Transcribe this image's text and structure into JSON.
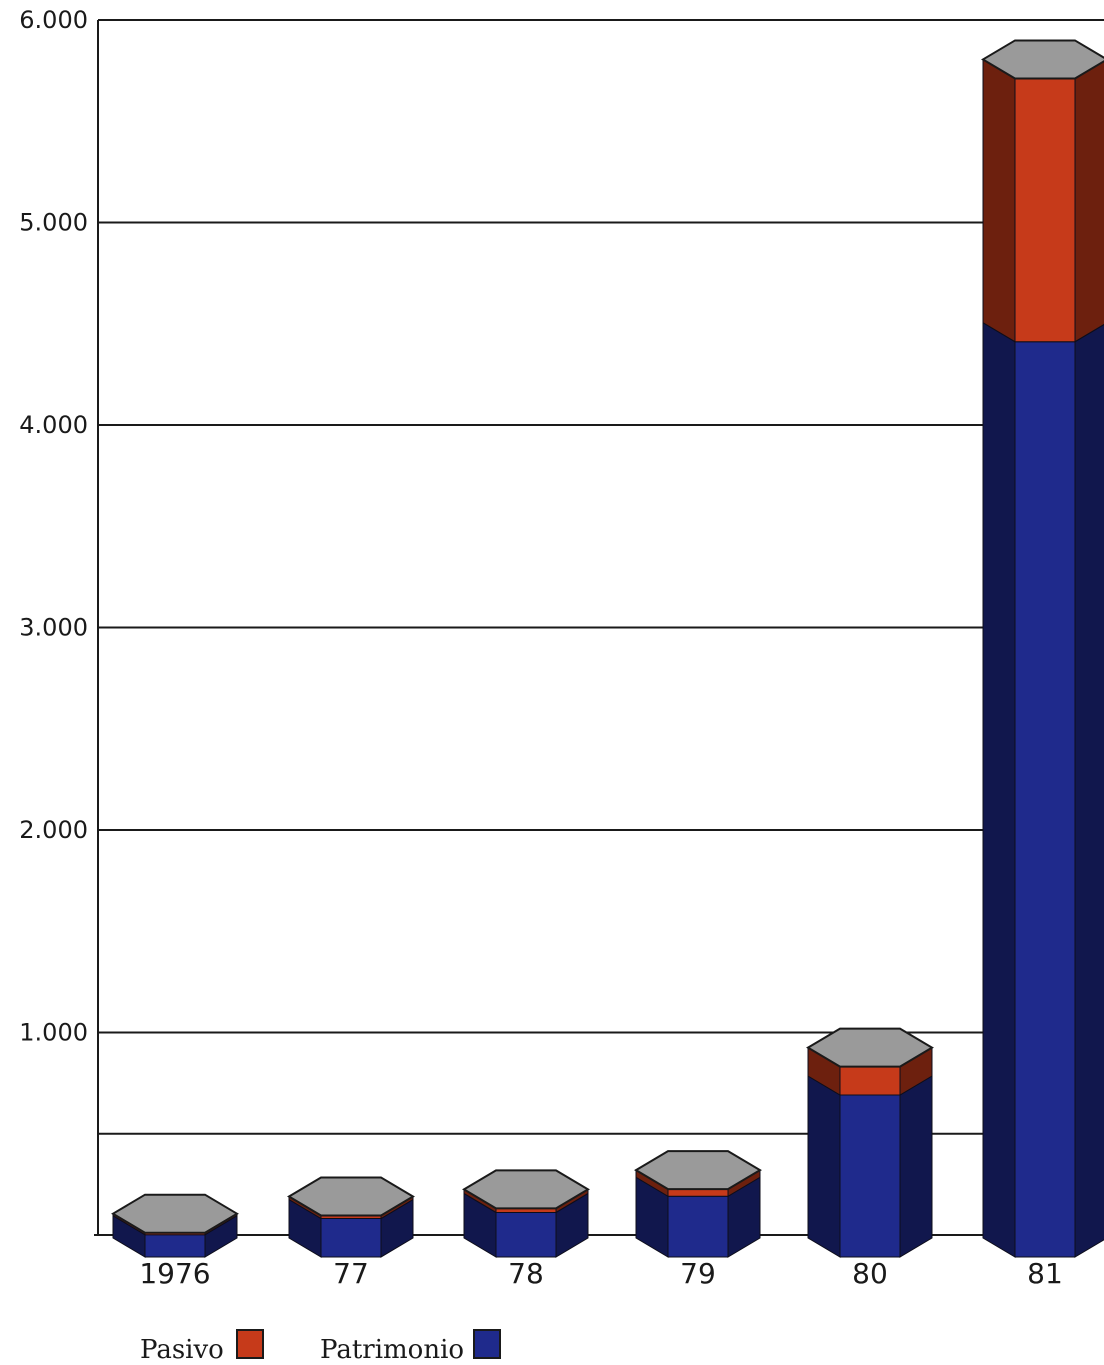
{
  "chart_data": {
    "type": "bar",
    "stacked": true,
    "style": "3d-hexagonal-prism",
    "categories": [
      "1976",
      "77",
      "78",
      "79",
      "80",
      "81"
    ],
    "series": [
      {
        "name": "Patrimonio",
        "color": "#1f2a8c",
        "values": [
          110,
          190,
          220,
          300,
          800,
          4520
        ]
      },
      {
        "name": "Pasivo",
        "color": "#c63a1a",
        "values": [
          10,
          15,
          20,
          35,
          140,
          1300
        ]
      }
    ],
    "y_ticks": [
      "1.000",
      "2.000",
      "3.000",
      "4.000",
      "5.000",
      "6.000"
    ],
    "ylim": [
      0,
      6000
    ],
    "extra_gridline_value": 500,
    "grid": true,
    "legend_position": "bottom-left",
    "top_color": "#9a9a9a"
  }
}
